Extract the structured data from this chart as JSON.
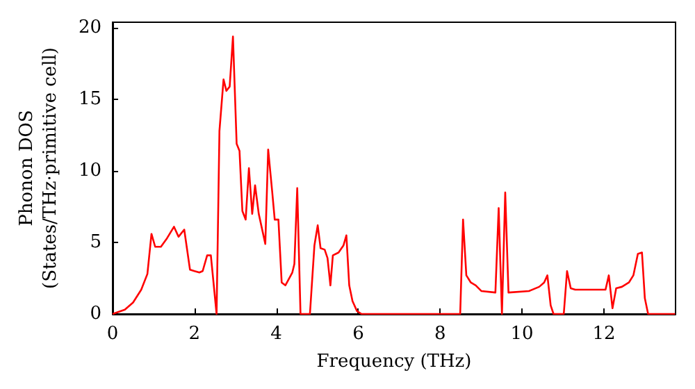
{
  "chart_data": {
    "type": "line",
    "xlabel": "Frequency (THz)",
    "ylabel": "Phonon DOS\n(States/THz·primitive cell)",
    "xlim": [
      0,
      13.75
    ],
    "xticks": [
      0,
      2,
      4,
      6,
      8,
      10,
      12
    ],
    "ylim": [
      0,
      20.4
    ],
    "yticks": [
      0,
      5,
      10,
      15,
      20
    ],
    "marker": "none",
    "line_style": "solid",
    "series": [
      {
        "color": "#ff0000",
        "x": [
          0,
          0.3,
          0.5,
          0.7,
          0.85,
          0.95,
          1.04,
          1.18,
          1.33,
          1.5,
          1.61,
          1.75,
          1.89,
          2.0,
          2.12,
          2.2,
          2.31,
          2.4,
          2.54,
          2.61,
          2.71,
          2.78,
          2.86,
          2.94,
          3.03,
          3.1,
          3.17,
          3.25,
          3.33,
          3.41,
          3.48,
          3.57,
          3.73,
          3.8,
          3.9,
          3.96,
          4.05,
          4.13,
          4.22,
          4.39,
          4.44,
          4.51,
          4.59,
          4.82,
          4.93,
          5.01,
          5.08,
          5.18,
          5.25,
          5.32,
          5.38,
          5.52,
          5.64,
          5.71,
          5.78,
          5.86,
          5.97,
          6.08,
          8.49,
          8.56,
          8.64,
          8.75,
          8.87,
          9.01,
          9.35,
          9.43,
          9.51,
          9.59,
          9.67,
          10.17,
          10.42,
          10.54,
          10.62,
          10.7,
          10.77,
          11.02,
          11.1,
          11.19,
          11.3,
          12.04,
          12.12,
          12.21,
          12.3,
          12.44,
          12.61,
          12.72,
          12.83,
          12.93,
          13.0,
          13.08,
          13.74
        ],
        "values": [
          0,
          0.3,
          0.8,
          1.7,
          2.8,
          5.6,
          4.7,
          4.7,
          5.3,
          6.1,
          5.4,
          5.9,
          3.1,
          3.0,
          2.9,
          3.0,
          4.1,
          4.1,
          0,
          12.8,
          16.4,
          15.6,
          15.9,
          19.4,
          11.9,
          11.4,
          7.2,
          6.6,
          10.2,
          7.0,
          9.0,
          7.0,
          4.9,
          11.5,
          8.5,
          6.6,
          6.6,
          2.2,
          2.0,
          2.9,
          3.5,
          8.8,
          0,
          0,
          4.8,
          6.2,
          4.6,
          4.5,
          3.9,
          2.0,
          4.1,
          4.3,
          4.8,
          5.5,
          2.0,
          0.9,
          0.2,
          0,
          0,
          6.6,
          2.7,
          2.2,
          2.0,
          1.6,
          1.5,
          7.4,
          0,
          8.5,
          1.5,
          1.6,
          1.9,
          2.2,
          2.7,
          0.6,
          0,
          0,
          3.0,
          1.8,
          1.7,
          1.7,
          2.7,
          0.4,
          1.8,
          1.9,
          2.2,
          2.7,
          4.2,
          4.3,
          1.1,
          0,
          0
        ]
      }
    ]
  }
}
